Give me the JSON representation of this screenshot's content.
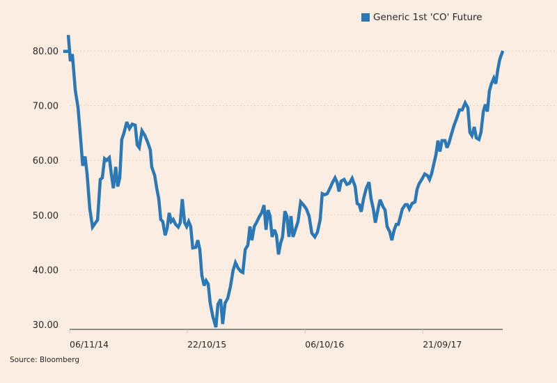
{
  "chart_data": {
    "type": "line",
    "title": "",
    "xlabel": "",
    "ylabel": "",
    "ylim": [
      29.1,
      84
    ],
    "yticks": [
      80,
      70,
      60,
      50,
      40,
      30
    ],
    "ytick_labels": [
      "80.00",
      "70.00",
      "60.00",
      "50.00",
      "40.00",
      "30.00"
    ],
    "xticks_days": [
      0,
      350,
      700,
      1050
    ],
    "xtick_labels": [
      "06/11/14",
      "22/10/15",
      "06/10/16",
      "21/09/17"
    ],
    "x_unit": "days since 06/11/14",
    "grid": "horizontal dotted",
    "legend_position": "top-right",
    "color": "#2a78b5",
    "series": [
      {
        "name": "Generic 1st 'CO' Future",
        "x": [
          -19,
          0,
          -4,
          2,
          8,
          17,
          25,
          33,
          39,
          46,
          52,
          60,
          68,
          77,
          83,
          91,
          97,
          104,
          110,
          118,
          124,
          130,
          137,
          143,
          149,
          155,
          161,
          170,
          178,
          186,
          195,
          201,
          207,
          215,
          224,
          232,
          240,
          244,
          253,
          259,
          265,
          271,
          277,
          284,
          290,
          296,
          302,
          308,
          315,
          323,
          329,
          335,
          342,
          348,
          354,
          360,
          366,
          375,
          381,
          387,
          393,
          400,
          406,
          412,
          418,
          426,
          435,
          441,
          449,
          455,
          462,
          470,
          478,
          486,
          493,
          501,
          509,
          515,
          522,
          530,
          536,
          542,
          549,
          557,
          563,
          571,
          578,
          584,
          590,
          596,
          602,
          609,
          615,
          621,
          627,
          633,
          640,
          646,
          652,
          658,
          664,
          671,
          679,
          687,
          696,
          704,
          712,
          720,
          729,
          737,
          745,
          751,
          758,
          766,
          774,
          782,
          789,
          795,
          801,
          807,
          816,
          824,
          832,
          840,
          849,
          855,
          861,
          867,
          874,
          882,
          890,
          896,
          903,
          909,
          917,
          923,
          932,
          938,
          944,
          952,
          958,
          965,
          971,
          977,
          983,
          989,
          998,
          1004,
          1010,
          1018,
          1027,
          1033,
          1039,
          1047,
          1056,
          1064,
          1070,
          1076,
          1083,
          1089,
          1095,
          1101,
          1107,
          1116,
          1122,
          1128,
          1134,
          1143,
          1151,
          1159,
          1167,
          1176,
          1184,
          1190,
          1196,
          1203,
          1209,
          1217,
          1223,
          1230,
          1236,
          1242,
          1248,
          1254,
          1261,
          1267,
          1273,
          1279,
          1288
        ],
        "values": [
          79.9,
          79.9,
          82.9,
          78.1,
          79.4,
          72.7,
          69.6,
          63.8,
          59.0,
          60.7,
          57.5,
          51.1,
          47.8,
          48.6,
          49.1,
          56.5,
          56.8,
          60.3,
          60.0,
          60.5,
          57.5,
          54.9,
          58.8,
          55.2,
          56.8,
          63.8,
          64.9,
          67.0,
          65.8,
          66.6,
          66.4,
          62.8,
          62.3,
          65.4,
          64.5,
          63.3,
          61.9,
          58.8,
          57.2,
          54.9,
          53.0,
          49.2,
          48.8,
          46.3,
          47.6,
          50.4,
          48.8,
          49.2,
          48.3,
          47.8,
          48.6,
          52.9,
          48.6,
          47.9,
          48.8,
          47.9,
          44.0,
          44.1,
          45.4,
          43.7,
          39.0,
          37.1,
          38.0,
          37.4,
          33.9,
          31.4,
          29.5,
          33.7,
          34.6,
          30.1,
          33.9,
          34.8,
          36.9,
          39.9,
          41.3,
          40.3,
          39.7,
          39.5,
          43.7,
          44.5,
          47.9,
          45.4,
          47.9,
          48.8,
          49.6,
          50.4,
          51.8,
          47.3,
          50.9,
          49.8,
          46.0,
          47.3,
          46.3,
          42.8,
          44.8,
          46.0,
          50.7,
          49.8,
          46.0,
          49.8,
          46.0,
          47.3,
          48.8,
          52.4,
          51.8,
          51.1,
          49.8,
          46.7,
          46.0,
          46.9,
          49.2,
          53.9,
          53.7,
          53.9,
          54.9,
          56.0,
          56.8,
          56.0,
          54.3,
          56.2,
          56.5,
          55.6,
          55.8,
          56.7,
          55.2,
          52.1,
          51.9,
          50.6,
          53.0,
          54.9,
          56.0,
          53.0,
          51.1,
          48.6,
          51.1,
          52.8,
          51.5,
          50.9,
          47.9,
          46.9,
          45.4,
          47.3,
          48.3,
          48.3,
          49.6,
          51.1,
          51.9,
          51.9,
          51.1,
          52.1,
          52.4,
          54.7,
          55.7,
          56.5,
          57.5,
          57.2,
          56.5,
          57.5,
          59.4,
          61.0,
          63.6,
          61.6,
          63.6,
          63.6,
          62.3,
          63.2,
          64.5,
          66.4,
          67.7,
          69.2,
          69.2,
          70.5,
          69.6,
          65.1,
          64.5,
          66.1,
          64.1,
          63.8,
          65.1,
          68.9,
          70.2,
          68.9,
          72.7,
          74.0,
          75.0,
          74.0,
          76.6,
          78.5,
          80.0
        ]
      }
    ],
    "source": "Source: Bloomberg"
  }
}
